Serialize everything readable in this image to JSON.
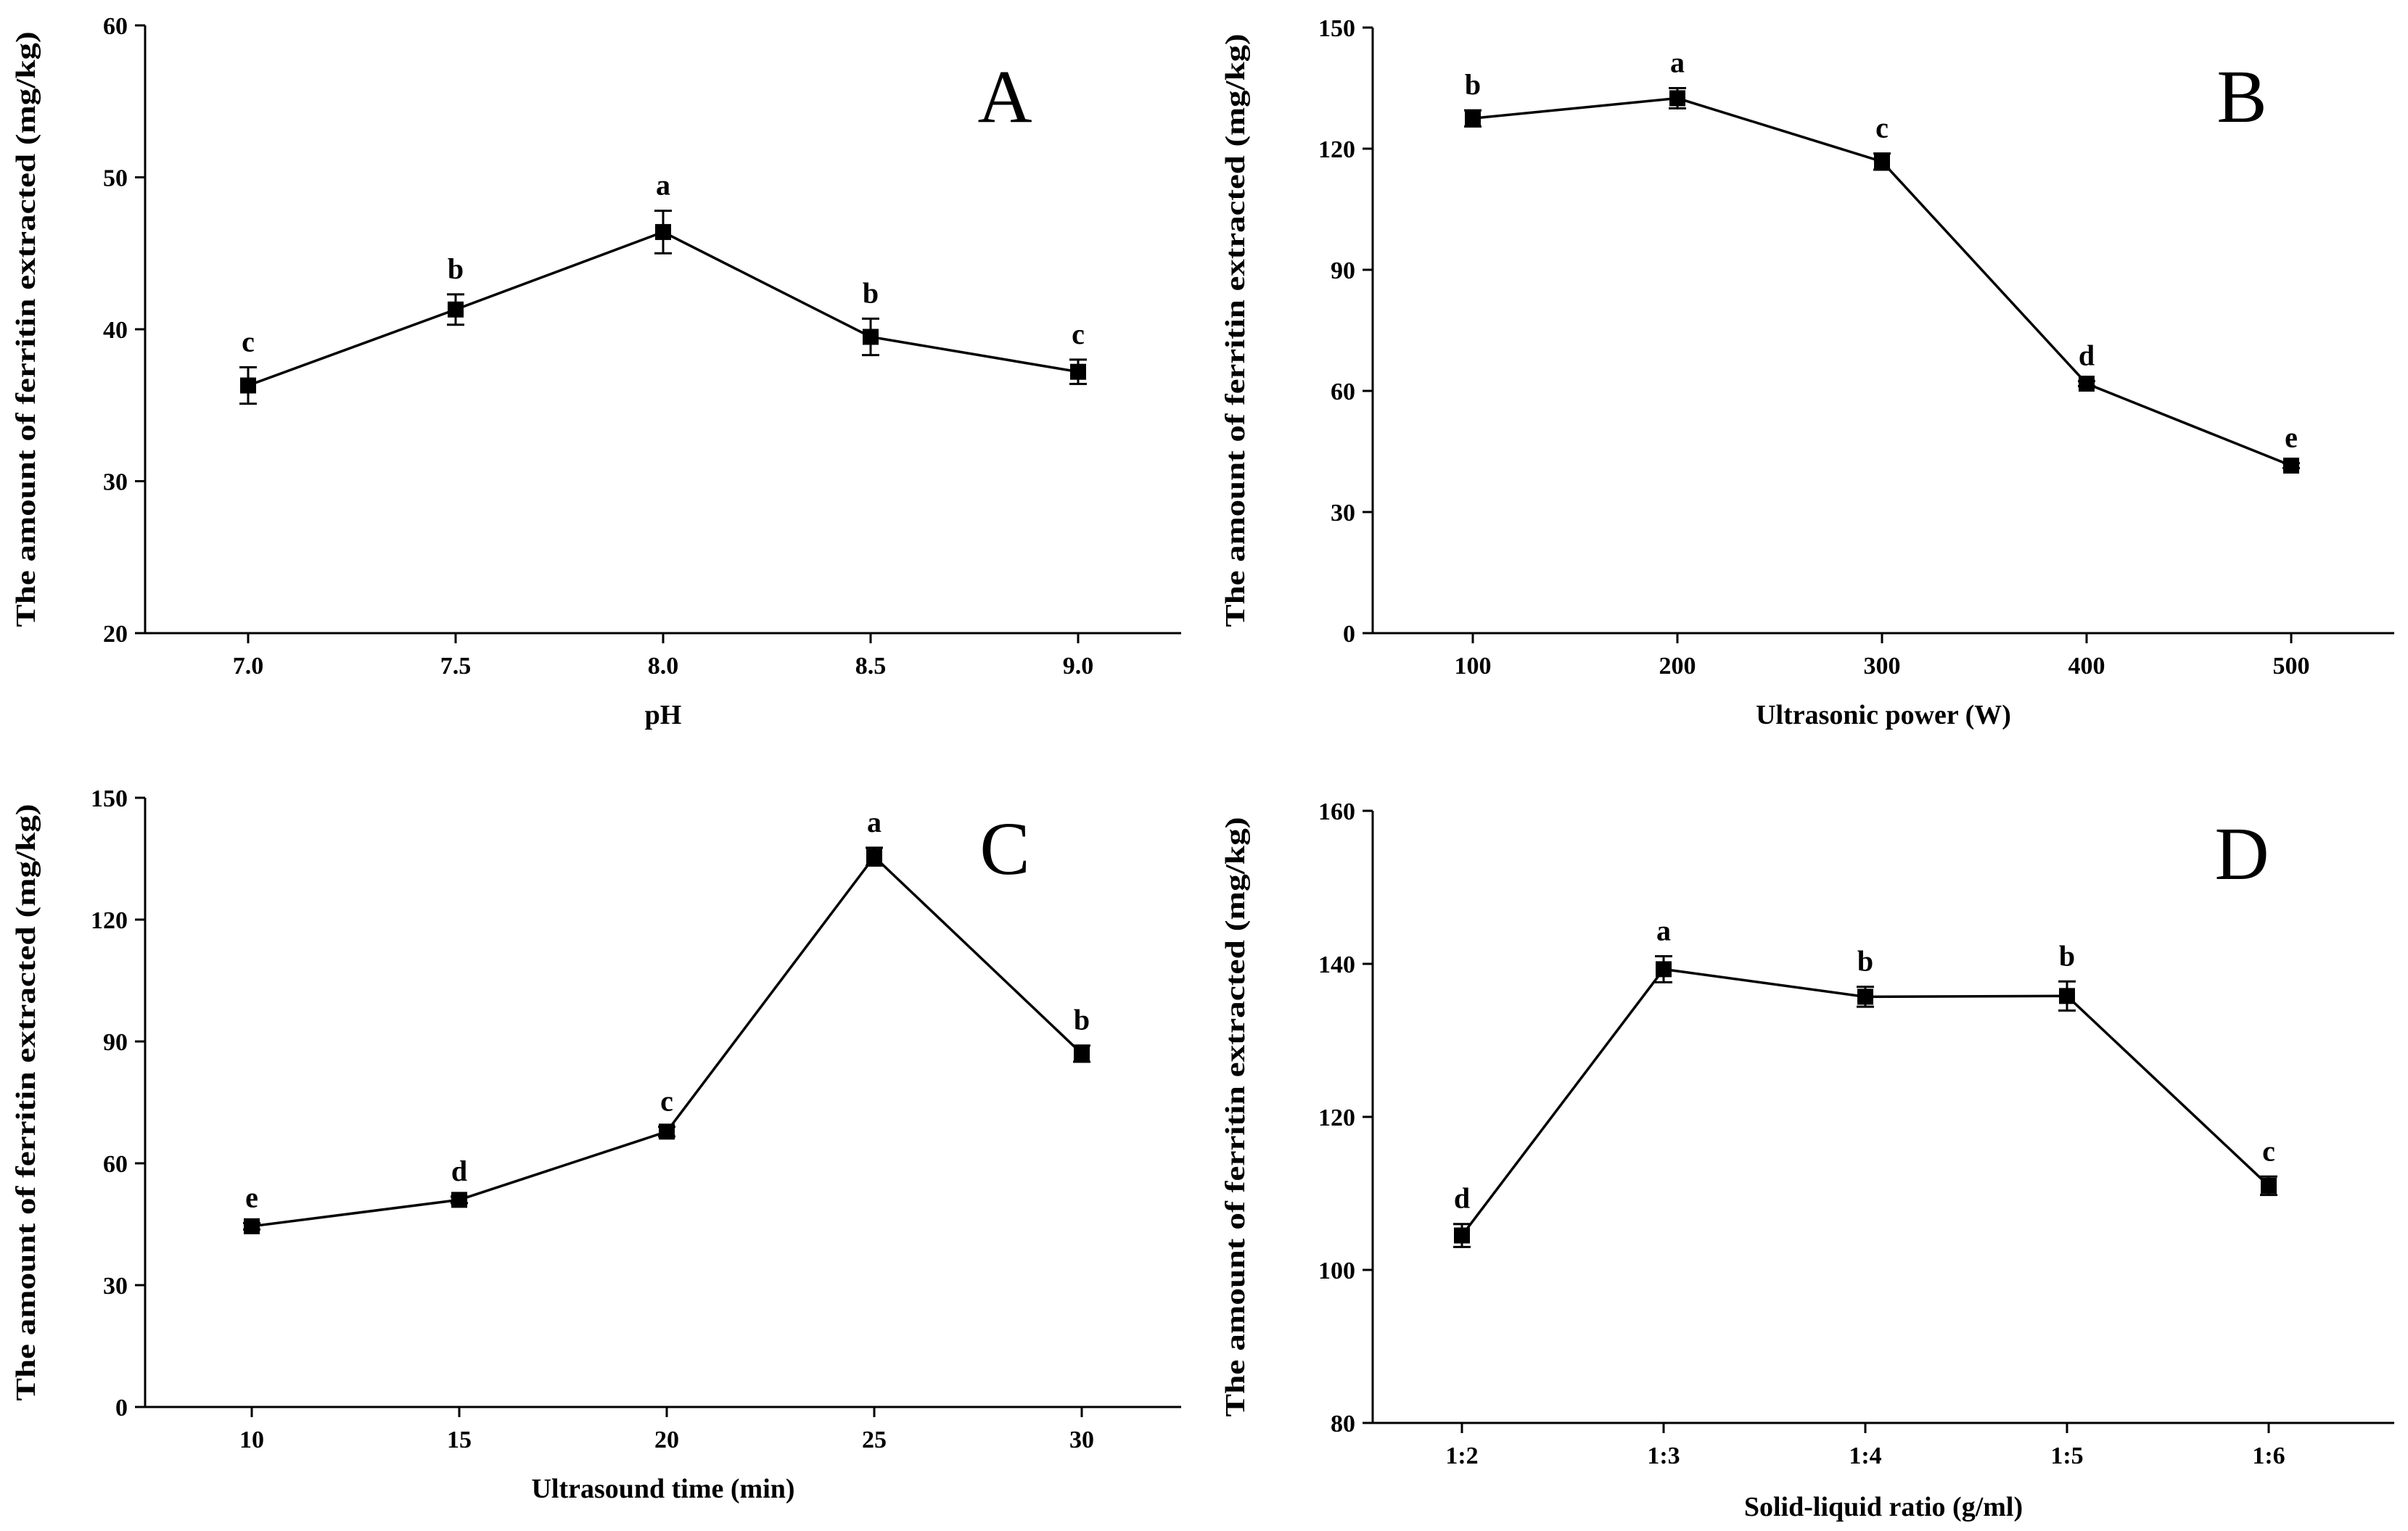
{
  "chart_data": [
    {
      "id": "A",
      "type": "line",
      "panel_label": "A",
      "xlabel": "pH",
      "ylabel": "The amount of ferritin extracted (mg/kg)",
      "categories": [
        "7.0",
        "7.5",
        "8.0",
        "8.5",
        "9.0"
      ],
      "values": [
        36.3,
        41.3,
        46.4,
        39.5,
        37.2
      ],
      "errors": [
        1.2,
        1.0,
        1.4,
        1.2,
        0.8
      ],
      "letters": [
        "c",
        "b",
        "a",
        "b",
        "c"
      ],
      "ylim": [
        20,
        60
      ],
      "yticks": [
        20,
        30,
        40,
        50,
        60
      ],
      "ytick_labels": [
        "20",
        "30",
        "40",
        "50",
        "60"
      ]
    },
    {
      "id": "B",
      "type": "line",
      "panel_label": "B",
      "xlabel": "Ultrasonic power (W)",
      "ylabel": "The amount of ferritin extracted (mg/kg)",
      "categories": [
        "100",
        "200",
        "300",
        "400",
        "500"
      ],
      "values": [
        127.5,
        132.5,
        116.8,
        61.8,
        41.5
      ],
      "errors": [
        2.0,
        2.5,
        2.0,
        0.6,
        0.6
      ],
      "letters": [
        "b",
        "a",
        "c",
        "d",
        "e"
      ],
      "ylim": [
        0,
        150
      ],
      "yticks": [
        0,
        30,
        60,
        90,
        120,
        150
      ],
      "ytick_labels": [
        "0",
        "30",
        "60",
        "90",
        "120",
        "150"
      ]
    },
    {
      "id": "C",
      "type": "line",
      "panel_label": "C",
      "xlabel": "Ultrasound time (min)",
      "ylabel": "The amount of ferritin extracted (mg/kg)",
      "categories": [
        "10",
        "15",
        "20",
        "25",
        "30"
      ],
      "values": [
        44.5,
        51.0,
        67.8,
        135.5,
        87.0
      ],
      "errors": [
        0.8,
        0.8,
        1.2,
        2.2,
        2.0
      ],
      "letters": [
        "e",
        "d",
        "c",
        "a",
        "b"
      ],
      "ylim": [
        0,
        150
      ],
      "yticks": [
        0,
        30,
        60,
        90,
        120,
        150
      ],
      "ytick_labels": [
        "0",
        "30",
        "60",
        "90",
        "120",
        "150"
      ]
    },
    {
      "id": "D",
      "type": "line",
      "panel_label": "D",
      "xlabel": "Solid-liquid ratio (g/ml)",
      "ylabel": "The amount of ferritin extracted (mg/kg)",
      "categories": [
        "1:2",
        "1:3",
        "1:4",
        "1:5",
        "1:6"
      ],
      "values": [
        104.5,
        139.3,
        135.7,
        135.8,
        111.0
      ],
      "errors": [
        1.5,
        1.7,
        1.3,
        1.9,
        1.2
      ],
      "letters": [
        "d",
        "a",
        "b",
        "b",
        "c"
      ],
      "ylim": [
        80,
        160
      ],
      "yticks": [
        80,
        100,
        120,
        140,
        160
      ],
      "ytick_labels": [
        "80",
        "100",
        "120",
        "140",
        "160"
      ]
    }
  ]
}
